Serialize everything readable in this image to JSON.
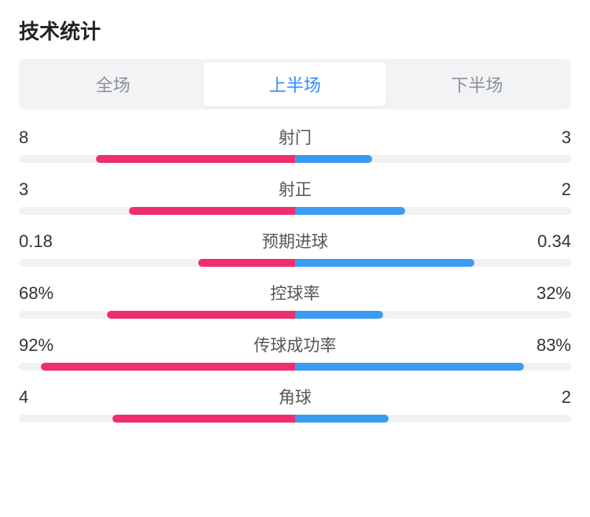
{
  "title": "技术统计",
  "tabs": {
    "items": [
      "全场",
      "上半场",
      "下半场"
    ],
    "active_index": 1
  },
  "colors": {
    "left": "#ef2e6d",
    "right": "#3a9cf0",
    "track": "#f0f1f3",
    "tab_active_text": "#2e8cff",
    "tab_inactive_text": "#8a8f99"
  },
  "stats": [
    {
      "label": "射门",
      "left_text": "8",
      "right_text": "3",
      "left_pct": 72,
      "right_pct": 28
    },
    {
      "label": "射正",
      "left_text": "3",
      "right_text": "2",
      "left_pct": 60,
      "right_pct": 40
    },
    {
      "label": "预期进球",
      "left_text": "0.18",
      "right_text": "0.34",
      "left_pct": 35,
      "right_pct": 65
    },
    {
      "label": "控球率",
      "left_text": "68%",
      "right_text": "32%",
      "left_pct": 68,
      "right_pct": 32
    },
    {
      "label": "传球成功率",
      "left_text": "92%",
      "right_text": "83%",
      "left_pct": 92,
      "right_pct": 83
    },
    {
      "label": "角球",
      "left_text": "4",
      "right_text": "2",
      "left_pct": 66,
      "right_pct": 34
    }
  ]
}
